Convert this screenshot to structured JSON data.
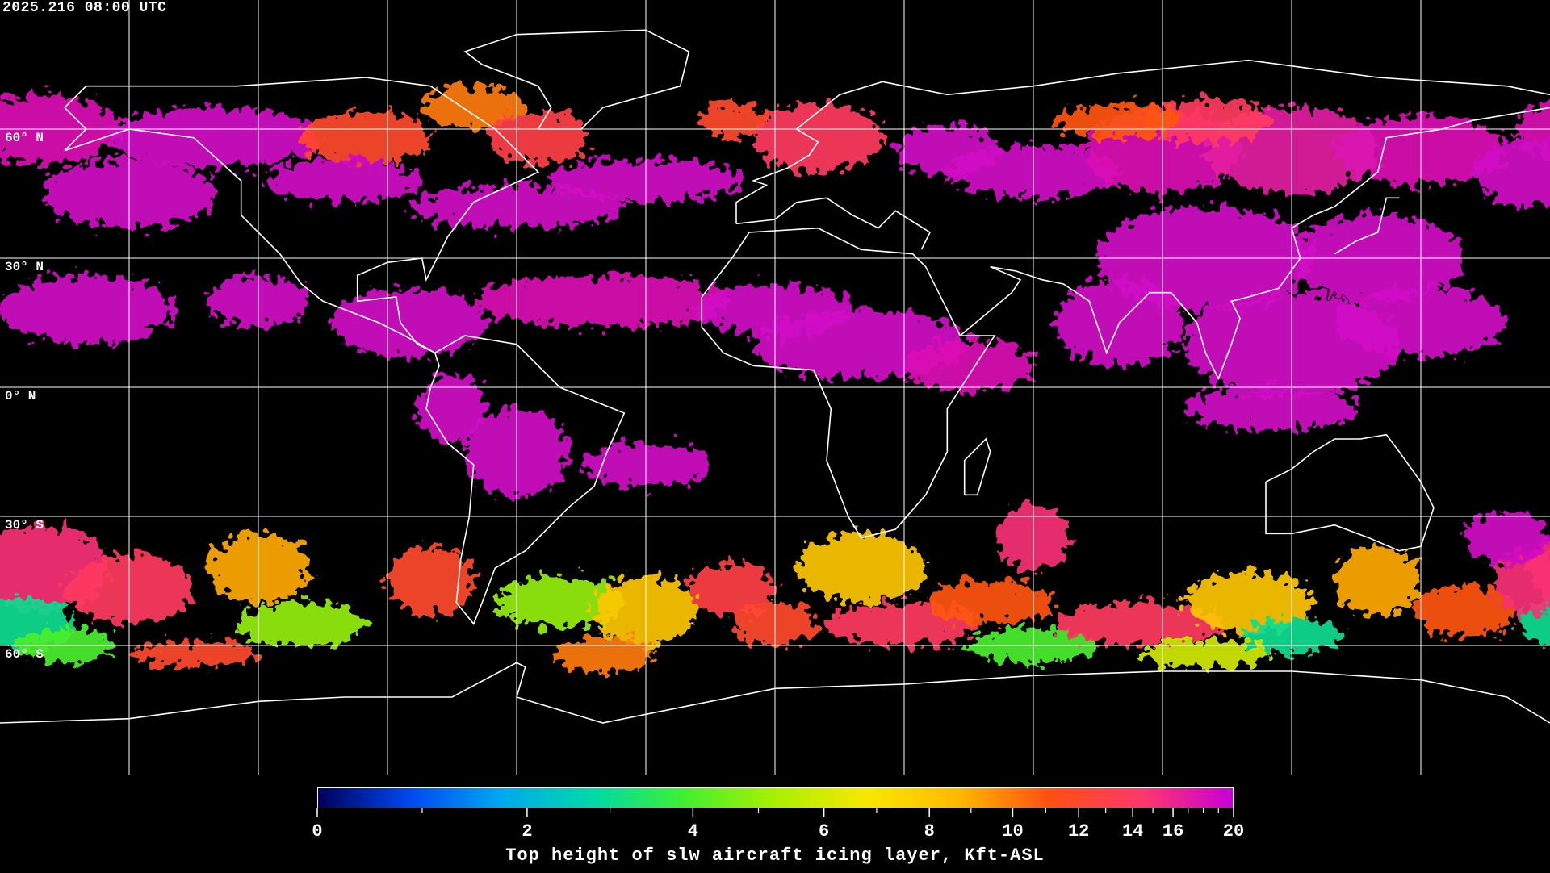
{
  "header": {
    "timestamp": "2025.216 08:00 UTC"
  },
  "map": {
    "projection": "equirectangular",
    "center_longitude": 0,
    "gridline_spacing_deg": 30,
    "gridline_color": "#ffffff",
    "coastline_color": "#ffffff",
    "background_color": "#000000",
    "latitude_labels": [
      {
        "lat": 60,
        "text": "60° N"
      },
      {
        "lat": 30,
        "text": "30° N"
      },
      {
        "lat": 0,
        "text": "0° N"
      },
      {
        "lat": -30,
        "text": "30° S"
      },
      {
        "lat": -60,
        "text": "60° S"
      }
    ]
  },
  "colorbar": {
    "title": "Top height of slw aircraft icing layer, Kft-ASL",
    "min": 0,
    "max": 20,
    "tick_labels": [
      "0",
      "2",
      "4",
      "6",
      "8",
      "10",
      "12",
      "14",
      "16",
      "20"
    ],
    "tick_values": [
      0,
      2,
      4,
      6,
      8,
      10,
      12,
      14,
      16,
      20
    ],
    "minor_tick_values": [
      1,
      3,
      5,
      7,
      9,
      11,
      13,
      15,
      17,
      18,
      19
    ],
    "colormap": [
      "#000058",
      "#0048f0",
      "#00a8f0",
      "#00d8a8",
      "#40f030",
      "#a8f000",
      "#f8e800",
      "#ffb800",
      "#ff5010",
      "#ff3868",
      "#c800d8"
    ]
  }
}
